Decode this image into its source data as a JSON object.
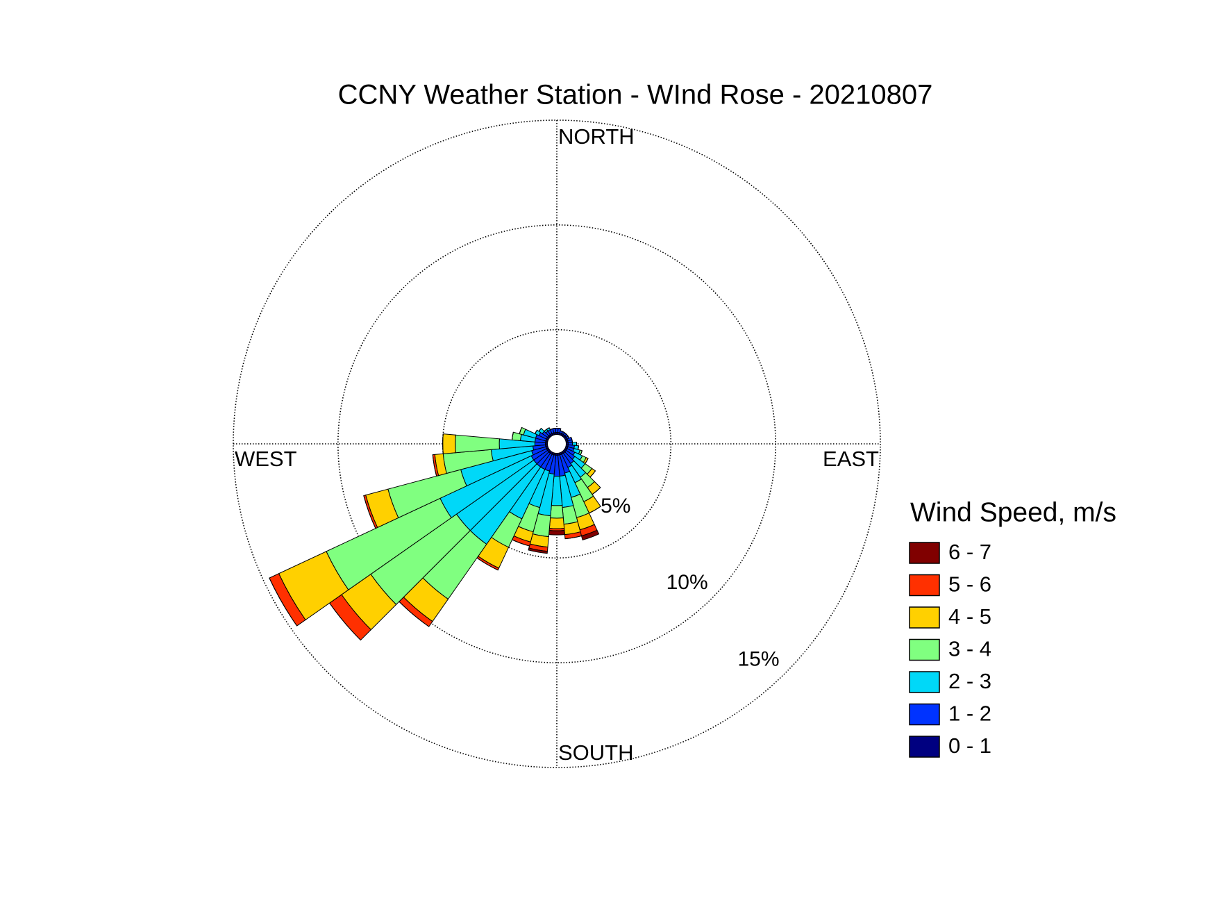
{
  "chart_data": {
    "type": "windrose",
    "title": "CCNY Weather Station - WInd Rose - 20210807",
    "direction_labels": {
      "north": "NORTH",
      "east": "EAST",
      "south": "SOUTH",
      "west": "WEST"
    },
    "legend_title": "Wind Speed, m/s",
    "grid": true,
    "rlim": [
      0,
      15
    ],
    "rticks": [
      {
        "value": 5,
        "label": "5%"
      },
      {
        "value": 10,
        "label": "10%"
      },
      {
        "value": 15,
        "label": "15%"
      }
    ],
    "directions": [
      0,
      10,
      20,
      30,
      40,
      50,
      60,
      70,
      80,
      90,
      100,
      110,
      120,
      130,
      140,
      150,
      160,
      170,
      180,
      190,
      200,
      210,
      220,
      230,
      240,
      250,
      260,
      270,
      280,
      290,
      300,
      310,
      320,
      330,
      340,
      350
    ],
    "series": [
      {
        "name": "0 - 1",
        "color": "#000080",
        "values": [
          0.1,
          0.1,
          0.1,
          0.1,
          0.1,
          0.1,
          0.1,
          0.1,
          0.1,
          0.1,
          0.1,
          0.1,
          0.1,
          0.1,
          0.1,
          0.1,
          0.1,
          0.1,
          0.1,
          0.1,
          0.1,
          0.1,
          0.1,
          0.1,
          0.1,
          0.1,
          0.1,
          0.1,
          0.1,
          0.1,
          0.1,
          0.1,
          0.1,
          0.1,
          0.1,
          0.1
        ]
      },
      {
        "name": "1 - 2",
        "color": "#0033ff",
        "values": [
          0.2,
          0.2,
          0.1,
          0.1,
          0.1,
          0.1,
          0.1,
          0.2,
          0.2,
          0.2,
          0.3,
          0.3,
          0.4,
          0.5,
          0.6,
          0.7,
          0.9,
          1.0,
          1.0,
          0.9,
          0.8,
          0.8,
          0.8,
          0.8,
          0.8,
          0.7,
          0.6,
          0.5,
          0.5,
          0.5,
          0.4,
          0.3,
          0.2,
          0.2,
          0.2,
          0.2
        ]
      },
      {
        "name": "2 - 3",
        "color": "#00d8f8",
        "values": [
          0,
          0,
          0,
          0,
          0,
          0,
          0,
          0,
          0,
          0.2,
          0.2,
          0.3,
          0.4,
          0.6,
          0.8,
          0.8,
          1.2,
          1.5,
          1.4,
          2.0,
          1.8,
          2.6,
          4.5,
          4.5,
          4.8,
          3.5,
          2.0,
          1.7,
          0.7,
          0.6,
          0.2,
          0.2,
          0.1,
          0.1,
          0,
          0
        ]
      },
      {
        "name": "3 - 4",
        "color": "#80ff80",
        "values": [
          0,
          0,
          0,
          0,
          0,
          0,
          0,
          0,
          0,
          0,
          0,
          0.1,
          0.2,
          0.4,
          0.6,
          1.0,
          1.0,
          0.8,
          0.6,
          1.0,
          1.2,
          1.5,
          3.2,
          5.0,
          6.0,
          3.6,
          2.3,
          2.1,
          0.4,
          0.2,
          0,
          0,
          0,
          0,
          0,
          0
        ]
      },
      {
        "name": "4 - 5",
        "color": "#ffd000",
        "values": [
          0,
          0,
          0,
          0,
          0,
          0,
          0,
          0,
          0,
          0,
          0,
          0,
          0.1,
          0.2,
          0.4,
          0.6,
          0.6,
          0.5,
          0.5,
          0.5,
          0.5,
          1.1,
          1.3,
          1.7,
          2.5,
          1.1,
          0.4,
          0.6,
          0,
          0,
          0,
          0,
          0,
          0,
          0,
          0
        ]
      },
      {
        "name": "5 - 6",
        "color": "#ff3000",
        "values": [
          0,
          0,
          0,
          0,
          0,
          0,
          0,
          0,
          0,
          0,
          0,
          0,
          0,
          0,
          0,
          0,
          0.3,
          0.2,
          0.1,
          0.2,
          0.2,
          0.1,
          0.3,
          0.7,
          0.5,
          0.1,
          0.1,
          0,
          0,
          0,
          0,
          0,
          0,
          0,
          0,
          0
        ]
      },
      {
        "name": "6 - 7",
        "color": "#800000",
        "values": [
          0,
          0,
          0,
          0,
          0,
          0,
          0,
          0,
          0,
          0,
          0,
          0,
          0,
          0,
          0,
          0,
          0.2,
          0,
          0.2,
          0.1,
          0,
          0,
          0,
          0,
          0,
          0,
          0,
          0,
          0,
          0,
          0,
          0,
          0,
          0,
          0,
          0
        ]
      }
    ]
  }
}
